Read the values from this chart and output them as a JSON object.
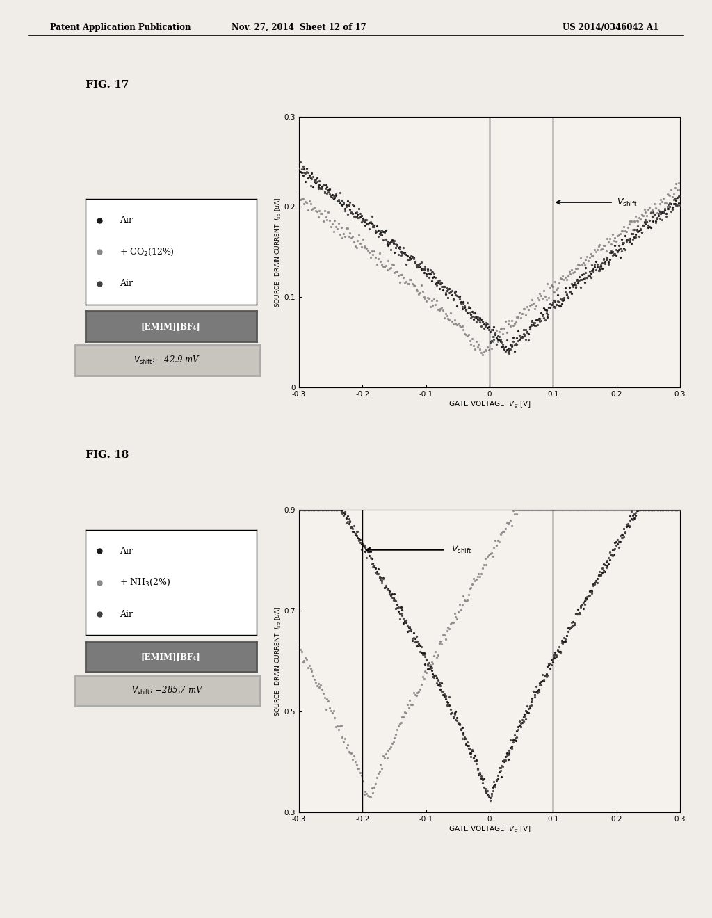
{
  "header_left": "Patent Application Publication",
  "header_center": "Nov. 27, 2014  Sheet 12 of 17",
  "header_right": "US 2014/0346042 A1",
  "fig17_label": "FIG. 17",
  "fig18_label": "FIG. 18",
  "xlabel17": "GATE VOLTAGE $\\mathit{V}_g$ [V]",
  "xlabel18": "GATE VOLTAGE $\\mathit{V}_g$ [V]",
  "ylabel17": "SOURCE–DRAIN CURRENT $\\mathit{I}_{sd}$ [μA]",
  "ylabel18": "SOURCE–DRAIN CURRENT $\\mathit{I}_{sd}$ [μA]",
  "fig17_ylim": [
    0,
    0.3
  ],
  "fig17_yticks": [
    0,
    0.1,
    0.2,
    0.3
  ],
  "fig17_xlim": [
    -0.3,
    0.3
  ],
  "fig17_xticks": [
    -0.3,
    -0.2,
    -0.1,
    0,
    0.1,
    0.2,
    0.3
  ],
  "fig18_ylim": [
    0.3,
    0.9
  ],
  "fig18_yticks": [
    0.3,
    0.5,
    0.7,
    0.9
  ],
  "fig18_xlim": [
    -0.3,
    0.3
  ],
  "fig18_xticks": [
    -0.3,
    -0.2,
    -0.1,
    0,
    0.1,
    0.2,
    0.3
  ],
  "bg_color": "#f0ede8"
}
